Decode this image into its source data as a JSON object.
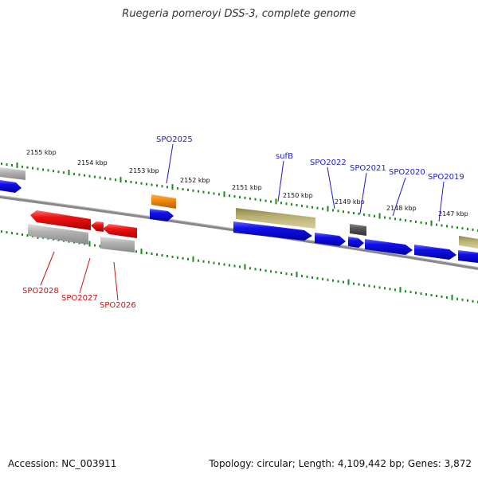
{
  "title": "Ruegeria pomeroyi DSS-3, complete genome",
  "footer": {
    "accession": "Accession: NC_003911",
    "summary": "Topology: circular; Length: 4,109,442 bp; Genes: 3,872"
  },
  "scale_labels": [
    "2155 kbp",
    "2154 kbp",
    "2153 kbp",
    "2152 kbp",
    "2151 kbp",
    "2150 kbp",
    "2149 kbp",
    "2148 kbp",
    "2147 kbp"
  ],
  "gene_labels": [
    {
      "text": "SPO2025",
      "color": "#1c1cc8"
    },
    {
      "text": "sufB",
      "color": "#1c1cc8"
    },
    {
      "text": "SPO2022",
      "color": "#1c1cc8"
    },
    {
      "text": "SPO2021",
      "color": "#1c1cc8"
    },
    {
      "text": "SPO2020",
      "color": "#1c1cc8"
    },
    {
      "text": "SPO2019",
      "color": "#1c1cc8"
    },
    {
      "text": "SPO2028",
      "color": "#cc1111"
    },
    {
      "text": "SPO2027",
      "color": "#cc1111"
    },
    {
      "text": "SPO2026",
      "color": "#cc1111"
    }
  ],
  "colors": {
    "forward_gene": "#1010e8",
    "reverse_gene": "#ee1111",
    "rna_gene": "#f08a10",
    "other_feature": "#b8b070",
    "pseudo": "#b0b0b0",
    "dark_feature": "#555555",
    "tick": "#1a8a1a",
    "backbone": "#808080"
  }
}
